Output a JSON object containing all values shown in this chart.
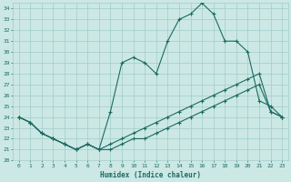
{
  "background_color": "#cce8e4",
  "grid_color": "#a0ccca",
  "line_color": "#1a6b62",
  "xlim": [
    -0.5,
    23.5
  ],
  "ylim": [
    20,
    34.5
  ],
  "xticks": [
    0,
    1,
    2,
    3,
    4,
    5,
    6,
    7,
    8,
    9,
    10,
    11,
    12,
    13,
    14,
    15,
    16,
    17,
    18,
    19,
    20,
    21,
    22,
    23
  ],
  "yticks": [
    20,
    21,
    22,
    23,
    24,
    25,
    26,
    27,
    28,
    29,
    30,
    31,
    32,
    33,
    34
  ],
  "xlabel": "Humidex (Indice chaleur)",
  "line_upper_x": [
    0,
    1,
    2,
    3,
    4,
    5,
    6,
    7,
    8,
    9,
    10,
    11,
    12,
    13,
    14,
    15,
    16,
    17,
    18,
    19,
    20,
    21,
    22,
    23
  ],
  "line_upper_y": [
    24.0,
    23.5,
    22.5,
    22.0,
    21.5,
    21.0,
    21.5,
    21.0,
    21.5,
    22.0,
    22.5,
    23.0,
    23.5,
    24.0,
    24.5,
    25.0,
    25.5,
    26.0,
    26.5,
    27.0,
    27.5,
    28.0,
    24.5,
    24.0
  ],
  "line_peak_x": [
    0,
    1,
    2,
    3,
    4,
    5,
    6,
    7,
    8,
    9,
    10,
    11,
    12,
    13,
    14,
    15,
    16,
    17,
    18,
    19,
    20,
    21,
    22,
    23
  ],
  "line_peak_y": [
    24.0,
    23.5,
    22.5,
    22.0,
    21.5,
    21.0,
    21.5,
    21.0,
    24.5,
    29.0,
    29.5,
    29.0,
    28.0,
    31.0,
    33.0,
    33.5,
    34.5,
    33.5,
    31.0,
    31.0,
    30.0,
    25.5,
    25.0,
    24.0
  ],
  "line_low_x": [
    0,
    1,
    2,
    3,
    4,
    5,
    6,
    7,
    8,
    9,
    10,
    11,
    12,
    13,
    14,
    15,
    16,
    17,
    18,
    19,
    20,
    21,
    22,
    23
  ],
  "line_low_y": [
    24.0,
    23.5,
    22.5,
    22.0,
    21.5,
    21.0,
    21.5,
    21.0,
    21.0,
    21.5,
    22.0,
    22.0,
    22.5,
    23.0,
    23.5,
    24.0,
    24.5,
    25.0,
    25.5,
    26.0,
    26.5,
    27.0,
    24.5,
    24.0
  ]
}
